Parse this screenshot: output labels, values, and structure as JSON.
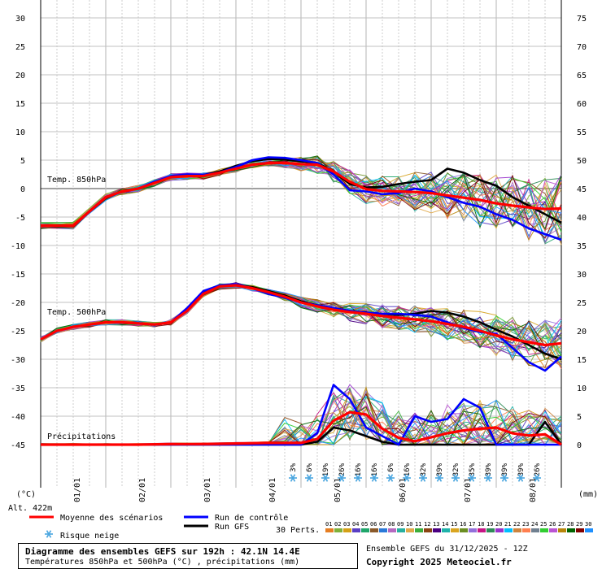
{
  "chart_data": {
    "type": "line",
    "title": "Diagramme des ensembles GEFS sur 192h : 42.1N 14.4E",
    "subtitle": "Températures 850hPa et 500hPa (°C) , précipitations (mm)",
    "left_unit": "(°C)",
    "right_unit": "(mm)",
    "altitude": "Alt. 422m",
    "left_ticks": [
      30,
      25,
      20,
      15,
      10,
      5,
      0,
      -5,
      -10,
      -15,
      -20,
      -25,
      -30,
      -35,
      -40,
      -45
    ],
    "right_ticks": [
      75,
      70,
      65,
      60,
      55,
      50,
      45,
      40,
      35,
      30,
      25,
      20,
      15,
      10,
      5,
      0
    ],
    "ylim_left": [
      -45,
      30
    ],
    "ylim_right": [
      0,
      75
    ],
    "x_labels": [
      "01/01",
      "02/01",
      "03/01",
      "04/01",
      "05/01",
      "06/01",
      "07/01",
      "08/01"
    ],
    "section_labels": [
      "Temp. 850hPa",
      "Temp. 500hPa",
      "Précipitations"
    ],
    "snow_risk_pct": [
      "3%",
      "6%",
      "19%",
      "26%",
      "16%",
      "16%",
      "6%",
      "16%",
      "32%",
      "39%",
      "32%",
      "35%",
      "39%",
      "39%",
      "39%",
      "26%"
    ],
    "t850": {
      "x": [
        0,
        0.5,
        1,
        1.25,
        1.5,
        1.75,
        2,
        2.25,
        2.5,
        2.75,
        3,
        3.25,
        3.5,
        3.75,
        4,
        4.25,
        4.5,
        4.75,
        5,
        5.25,
        5.5,
        5.75,
        6,
        6.25,
        6.5,
        6.75,
        7,
        7.25,
        7.5,
        7.75,
        8
      ],
      "mean": [
        -6.5,
        -6.5,
        -1.5,
        -0.5,
        0,
        1,
        2,
        2.2,
        2.2,
        2.8,
        3.5,
        4.2,
        4.5,
        4.5,
        4.3,
        4.2,
        3,
        1.2,
        -0.1,
        -0.4,
        -0.5,
        -0.6,
        -0.8,
        -1.2,
        -1.6,
        -2,
        -2.6,
        -3,
        -3.3,
        -3.6,
        -3.5
      ],
      "control": [
        -6.5,
        -6.5,
        -1.5,
        -0.5,
        0,
        1.2,
        2.2,
        2.5,
        2.4,
        2.8,
        3.8,
        5,
        5.5,
        5.4,
        5,
        4.5,
        2.5,
        -0.3,
        -0.5,
        -1,
        -0.8,
        0,
        -0.5,
        -1.5,
        -2.5,
        -3.2,
        -4.5,
        -5.5,
        -7,
        -8,
        -9
      ],
      "gfs": [
        -6.5,
        -6.5,
        -1.5,
        -0.5,
        0,
        1,
        2,
        2.3,
        2.4,
        3,
        4,
        4.8,
        5.2,
        5.1,
        4.8,
        4.5,
        3,
        0.8,
        0.2,
        0.3,
        0.8,
        1.2,
        1.5,
        3.5,
        2.8,
        1.5,
        0.5,
        -1.5,
        -3,
        -4.5,
        -6
      ]
    },
    "t500": {
      "x": [
        0,
        0.25,
        0.5,
        0.75,
        1,
        1.25,
        1.5,
        1.75,
        2,
        2.25,
        2.5,
        2.75,
        3,
        3.25,
        3.5,
        3.75,
        4,
        4.25,
        4.5,
        4.75,
        5,
        5.25,
        5.5,
        5.75,
        6,
        6.25,
        6.5,
        6.75,
        7,
        7.25,
        7.5,
        7.75,
        8
      ],
      "mean": [
        -26.5,
        -25,
        -24.3,
        -23.9,
        -23.5,
        -23.5,
        -23.7,
        -23.9,
        -23.5,
        -21.5,
        -18.5,
        -17.2,
        -17,
        -17.5,
        -18.2,
        -19,
        -20,
        -20.7,
        -21.3,
        -21.7,
        -22,
        -22.4,
        -22.7,
        -23,
        -23.3,
        -23.8,
        -24.3,
        -25,
        -25.8,
        -26.5,
        -27,
        -27.5,
        -27.2
      ],
      "control": [
        -26.5,
        -25,
        -24.3,
        -23.9,
        -23.5,
        -23.5,
        -23.7,
        -23.9,
        -23.5,
        -21,
        -18,
        -17,
        -16.8,
        -17.5,
        -18.5,
        -19.2,
        -20,
        -20.5,
        -21,
        -21.5,
        -21.8,
        -22,
        -22,
        -22.2,
        -22.5,
        -23.5,
        -24.5,
        -25.2,
        -25.5,
        -28,
        -30.5,
        -32,
        -29.5
      ],
      "gfs": [
        -26.5,
        -25,
        -24.3,
        -23.9,
        -23.5,
        -23.5,
        -23.7,
        -23.9,
        -23.5,
        -21.3,
        -18.3,
        -17.1,
        -16.9,
        -17.3,
        -18,
        -18.8,
        -19.8,
        -20.5,
        -21,
        -21.5,
        -21.8,
        -22,
        -22.2,
        -22,
        -21.5,
        -21.8,
        -22.5,
        -23.5,
        -24.8,
        -26,
        -27.5,
        -29,
        -30
      ]
    },
    "precip": {
      "x": [
        0,
        0.5,
        1,
        1.5,
        2,
        2.5,
        3,
        3.5,
        3.75,
        4,
        4.25,
        4.5,
        4.75,
        5,
        5.25,
        5.5,
        5.75,
        6,
        6.25,
        6.5,
        6.75,
        7,
        7.25,
        7.5,
        7.75,
        8
      ],
      "mean": [
        0,
        0,
        0,
        0,
        0.1,
        0.1,
        0.2,
        0.3,
        0.3,
        0.3,
        1,
        4.2,
        5.7,
        5.3,
        2.8,
        1.2,
        0.6,
        1.3,
        2,
        2.5,
        2.8,
        3,
        2,
        1.6,
        1.8,
        0
      ],
      "control": [
        0,
        0,
        0,
        0,
        0,
        0,
        0,
        0,
        0,
        0,
        2,
        10.5,
        8,
        3,
        1.5,
        0,
        5,
        4,
        4.5,
        8,
        6.5,
        0,
        0,
        0,
        0,
        0
      ],
      "gfs": [
        0,
        0,
        0,
        0,
        0,
        0,
        0,
        0,
        0,
        0,
        0.5,
        3,
        2.5,
        1.5,
        0.5,
        0,
        0,
        0,
        0,
        0,
        0,
        0,
        0,
        0,
        4,
        0
      ]
    },
    "legend": {
      "mean": "Moyenne des scénarios",
      "control": "Run de contrôle",
      "gfs": "Run GFS",
      "snow": "Risque neige",
      "perts": "30 Perts.",
      "perts_numbers": [
        "01",
        "02",
        "03",
        "04",
        "05",
        "06",
        "07",
        "08",
        "09",
        "10",
        "11",
        "12",
        "13",
        "14",
        "15",
        "16",
        "17",
        "18",
        "19",
        "20",
        "21",
        "22",
        "23",
        "24",
        "25",
        "26",
        "27",
        "28",
        "29",
        "30"
      ]
    },
    "colors": {
      "mean": "#ff0000",
      "control": "#0000ff",
      "gfs": "#000000",
      "snow": "#4aa6e0",
      "grid": "#c0c0c0",
      "perts": [
        "#e67e22",
        "#7fb13a",
        "#d4a017",
        "#5a3fc4",
        "#1fa66a",
        "#8a5a2b",
        "#2a7ad9",
        "#b56ac0",
        "#27b0a0",
        "#e0a94a",
        "#3cae3c",
        "#8b4513",
        "#4b0082",
        "#20b2aa",
        "#daa520",
        "#6b8e23",
        "#9370db",
        "#c71585",
        "#2e8b57",
        "#9932cc",
        "#00bfff",
        "#cd853f",
        "#ff7f50",
        "#708090",
        "#32cd32",
        "#ba55d3",
        "#b8860b",
        "#006400",
        "#800000",
        "#1e90ff"
      ]
    }
  },
  "footer": {
    "title": "Diagramme des ensembles GEFS sur 192h : 42.1N 14.4E",
    "subtitle": "Températures 850hPa et 500hPa (°C) , précipitations (mm)",
    "run": "Ensemble GEFS du 31/12/2025 - 12Z",
    "copyright": "Copyright 2025 Meteociel.fr"
  }
}
